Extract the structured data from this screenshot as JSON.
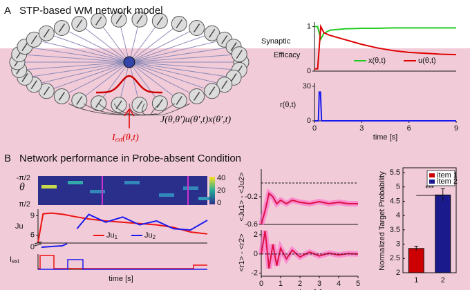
{
  "panel_a": {
    "letter": "A",
    "title": "STP-based WM network model",
    "iext_label": "I",
    "iext_sub": "ext",
    "iext_args": "(θ,t)",
    "coupling_label": "J(θ,θ')u(θ',t)x(θ',t)",
    "efficacy": {
      "ylabel_1": "Synaptic",
      "ylabel_2": "Efficacy",
      "xlim": [
        0,
        9
      ],
      "ylim": [
        0,
        1.1
      ],
      "yticks": [
        0,
        1
      ],
      "x": [
        0,
        0.2,
        0.4,
        0.6,
        1,
        2,
        3,
        4,
        5,
        6,
        7,
        8,
        9
      ],
      "series": [
        {
          "name": "x(θ,t)",
          "color": "#22cc22",
          "values": [
            1.0,
            1.0,
            0.72,
            0.85,
            0.92,
            0.95,
            0.96,
            0.96,
            0.97,
            0.97,
            0.97,
            0.97,
            0.97
          ]
        },
        {
          "name": "u(θ,t)",
          "color": "#dd0000",
          "values": [
            0.05,
            0.05,
            1.0,
            0.86,
            0.8,
            0.7,
            0.6,
            0.52,
            0.46,
            0.42,
            0.4,
            0.38,
            0.37
          ]
        }
      ]
    },
    "rate": {
      "ylabel": "r(θ,t)",
      "xlim": [
        0,
        9
      ],
      "ylim": [
        0,
        33
      ],
      "yticks": [
        0,
        30
      ],
      "xticks": [
        0,
        3,
        6,
        9
      ],
      "xlabel": "time [s]",
      "x": [
        0,
        0.25,
        0.3,
        0.38,
        0.45,
        0.5,
        9
      ],
      "series": [
        {
          "color": "#1a1aee",
          "values": [
            0,
            0,
            25,
            25,
            0,
            0,
            0
          ]
        }
      ]
    }
  },
  "panel_b": {
    "letter": "B",
    "title": "Network performance in Probe-absent Condition",
    "heatmap": {
      "ylabel": "θ",
      "ytop": "-π/2",
      "ybottom": "π/2",
      "colorbar_ticks": [
        40,
        20,
        0
      ]
    },
    "ju": {
      "ylabel": "Ju",
      "xlim": [
        0,
        10
      ],
      "ylim": [
        4.8,
        10
      ],
      "yticks": [
        6,
        9
      ],
      "zero_label": "0",
      "x": [
        0,
        0.3,
        0.8,
        1.5,
        2.3,
        3,
        4,
        5,
        6,
        7,
        8,
        9,
        10
      ],
      "series": [
        {
          "name": "Ju",
          "sub": "1",
          "color": "#ee1111",
          "values": [
            4.9,
            9.3,
            9.4,
            9.2,
            8.8,
            8.5,
            8.2,
            8.0,
            7.8,
            7.6,
            7.2,
            6.5,
            6.2
          ]
        },
        {
          "name": "Ju",
          "sub": "2",
          "color": "#1a1aee",
          "values": [
            null,
            null,
            null,
            null,
            7.0,
            9.2,
            8.0,
            8.8,
            7.6,
            8.2,
            7.0,
            6.8,
            8.3
          ]
        }
      ]
    },
    "iext": {
      "ylabel": "I",
      "ylabel_sub": "ext",
      "xlabel": "time [s]"
    },
    "ju_diff": {
      "ylabel": "<Ju1> - <Ju2>",
      "xlim": [
        0,
        5
      ],
      "ylim": [
        -0.6,
        0.2
      ],
      "yticks": [
        -0.2,
        -0.6
      ],
      "x": [
        0,
        0.2,
        0.4,
        0.6,
        0.8,
        1,
        1.3,
        1.6,
        2,
        2.5,
        3,
        3.5,
        4,
        4.5,
        5
      ],
      "series": [
        {
          "color": "#dd1144",
          "values": [
            -0.6,
            -0.4,
            -0.15,
            -0.2,
            -0.3,
            -0.25,
            -0.3,
            -0.25,
            -0.28,
            -0.3,
            -0.27,
            -0.3,
            -0.28,
            -0.3,
            -0.3
          ]
        }
      ]
    },
    "r_diff": {
      "ylabel": "<r1> - <r2>",
      "xlim": [
        0,
        5
      ],
      "ylim": [
        -2.3,
        2.5
      ],
      "yticks": [
        2,
        0,
        -2
      ],
      "xticks": [
        0,
        1,
        2,
        3,
        4,
        5
      ],
      "xlabel": "time [s]",
      "x": [
        0,
        0.2,
        0.4,
        0.6,
        0.8,
        1,
        1.3,
        1.6,
        2,
        2.5,
        3,
        3.5,
        4,
        4.5,
        5
      ],
      "series": [
        {
          "color": "#dd1144",
          "values": [
            0,
            2.4,
            -1.5,
            1.0,
            -1.2,
            0.6,
            -0.5,
            0.4,
            -0.3,
            0.2,
            -0.2,
            0.1,
            -0.1,
            0.05,
            0
          ]
        }
      ]
    }
  },
  "chart_data": {
    "type": "bar",
    "ylabel": "Normalized Target Probability",
    "categories": [
      "1",
      "2"
    ],
    "values": [
      2.85,
      4.72
    ],
    "errors": [
      0.08,
      0.22
    ],
    "legend": [
      "item 1",
      "item 2"
    ],
    "colors": [
      "#cc0000",
      "#1a1a8c"
    ],
    "ylim": [
      2,
      5.67
    ],
    "yticks": [
      2,
      2.5,
      3,
      3.5,
      4,
      4.5,
      5,
      5.5
    ],
    "annotation": "***"
  }
}
